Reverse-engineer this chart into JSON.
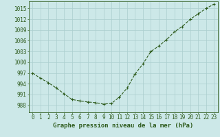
{
  "x": [
    0,
    1,
    2,
    3,
    4,
    5,
    6,
    7,
    8,
    9,
    10,
    11,
    12,
    13,
    14,
    15,
    16,
    17,
    18,
    19,
    20,
    21,
    22,
    23
  ],
  "y": [
    997.0,
    995.5,
    994.3,
    992.8,
    991.2,
    989.6,
    989.2,
    988.9,
    988.7,
    988.3,
    988.5,
    990.2,
    992.8,
    996.7,
    999.5,
    1003.0,
    1004.5,
    1006.3,
    1008.5,
    1010.0,
    1012.0,
    1013.5,
    1015.0,
    1016.2
  ],
  "line_color": "#2d5a1b",
  "marker": "+",
  "marker_size": 3.5,
  "bg_color": "#cce8e8",
  "grid_color": "#aacece",
  "xlabel": "Graphe pression niveau de la mer (hPa)",
  "xlabel_fontsize": 6.5,
  "ytick_labels": [
    "988",
    "991",
    "994",
    "997",
    "1000",
    "1003",
    "1006",
    "1009",
    "1012",
    "1015"
  ],
  "ytick_values": [
    988,
    991,
    994,
    997,
    1000,
    1003,
    1006,
    1009,
    1012,
    1015
  ],
  "ylim": [
    986.0,
    1017.0
  ],
  "xlim": [
    -0.5,
    23.5
  ],
  "tick_fontsize": 5.5,
  "line_width": 0.8,
  "linestyle": "--"
}
